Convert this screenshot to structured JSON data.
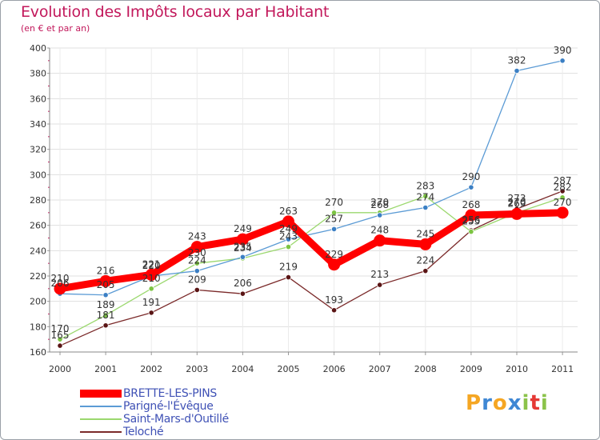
{
  "header": {
    "title": "Evolution des Impôts locaux par Habitant",
    "subtitle": "(en € et par an)"
  },
  "logo": {
    "text": "Proxiti",
    "letters": [
      "P",
      "r",
      "o",
      "x",
      "i",
      "t",
      "i"
    ],
    "letter_colors": [
      "#f5a623",
      "#3f87d4",
      "#f5a623",
      "#3f87d4",
      "#8bc34a",
      "#e53935",
      "#8bc34a"
    ]
  },
  "chart_data": {
    "type": "line",
    "title": "Evolution des Impôts locaux par Habitant",
    "subtitle": "(en € et par an)",
    "xlabel": "",
    "ylabel": "",
    "x": [
      "2000",
      "2001",
      "2002",
      "2003",
      "2004",
      "2005",
      "2006",
      "2007",
      "2008",
      "2009",
      "2010",
      "2011"
    ],
    "ylim": [
      160,
      400
    ],
    "yticks": [
      160,
      180,
      200,
      220,
      240,
      260,
      280,
      300,
      320,
      340,
      360,
      380,
      400
    ],
    "grid": true,
    "legend_position": "bottom-left",
    "series": [
      {
        "name": "BRETTE-LES-PINS",
        "color": "#ff0000",
        "values": [
          210,
          216,
          221,
          243,
          249,
          263,
          229,
          248,
          245,
          268,
          269,
          270
        ],
        "labels": [
          "210",
          "216",
          "221",
          "243",
          "249",
          "263",
          "229",
          "248",
          "245",
          "268",
          "269",
          "270"
        ]
      },
      {
        "name": "Parigné-l'Évêque",
        "color": "#5b9bd5",
        "values": [
          206,
          205,
          220,
          224,
          235,
          249,
          257,
          268,
          274,
          290,
          382,
          390
        ],
        "labels": [
          "206",
          "205",
          "220",
          "224",
          "235",
          "249",
          "257",
          "268",
          "274",
          "290",
          "382",
          "390"
        ]
      },
      {
        "name": "Saint-Mars-d'Outillé",
        "color": "#9bd86e",
        "values": [
          170,
          189,
          210,
          230,
          234,
          243,
          270,
          270,
          283,
          255,
          270,
          282
        ],
        "labels": [
          "170",
          "189",
          "210",
          "230",
          "234",
          "243",
          "270",
          "270",
          "283",
          "255",
          "270",
          "282"
        ]
      },
      {
        "name": "Teloché",
        "color": "#7b2a2a",
        "values": [
          165,
          181,
          191,
          209,
          206,
          219,
          193,
          213,
          224,
          256,
          273,
          287
        ],
        "labels": [
          "165",
          "181",
          "191",
          "209",
          "206",
          "219",
          "193",
          "213",
          "224",
          "256",
          "273",
          "287"
        ]
      }
    ]
  }
}
